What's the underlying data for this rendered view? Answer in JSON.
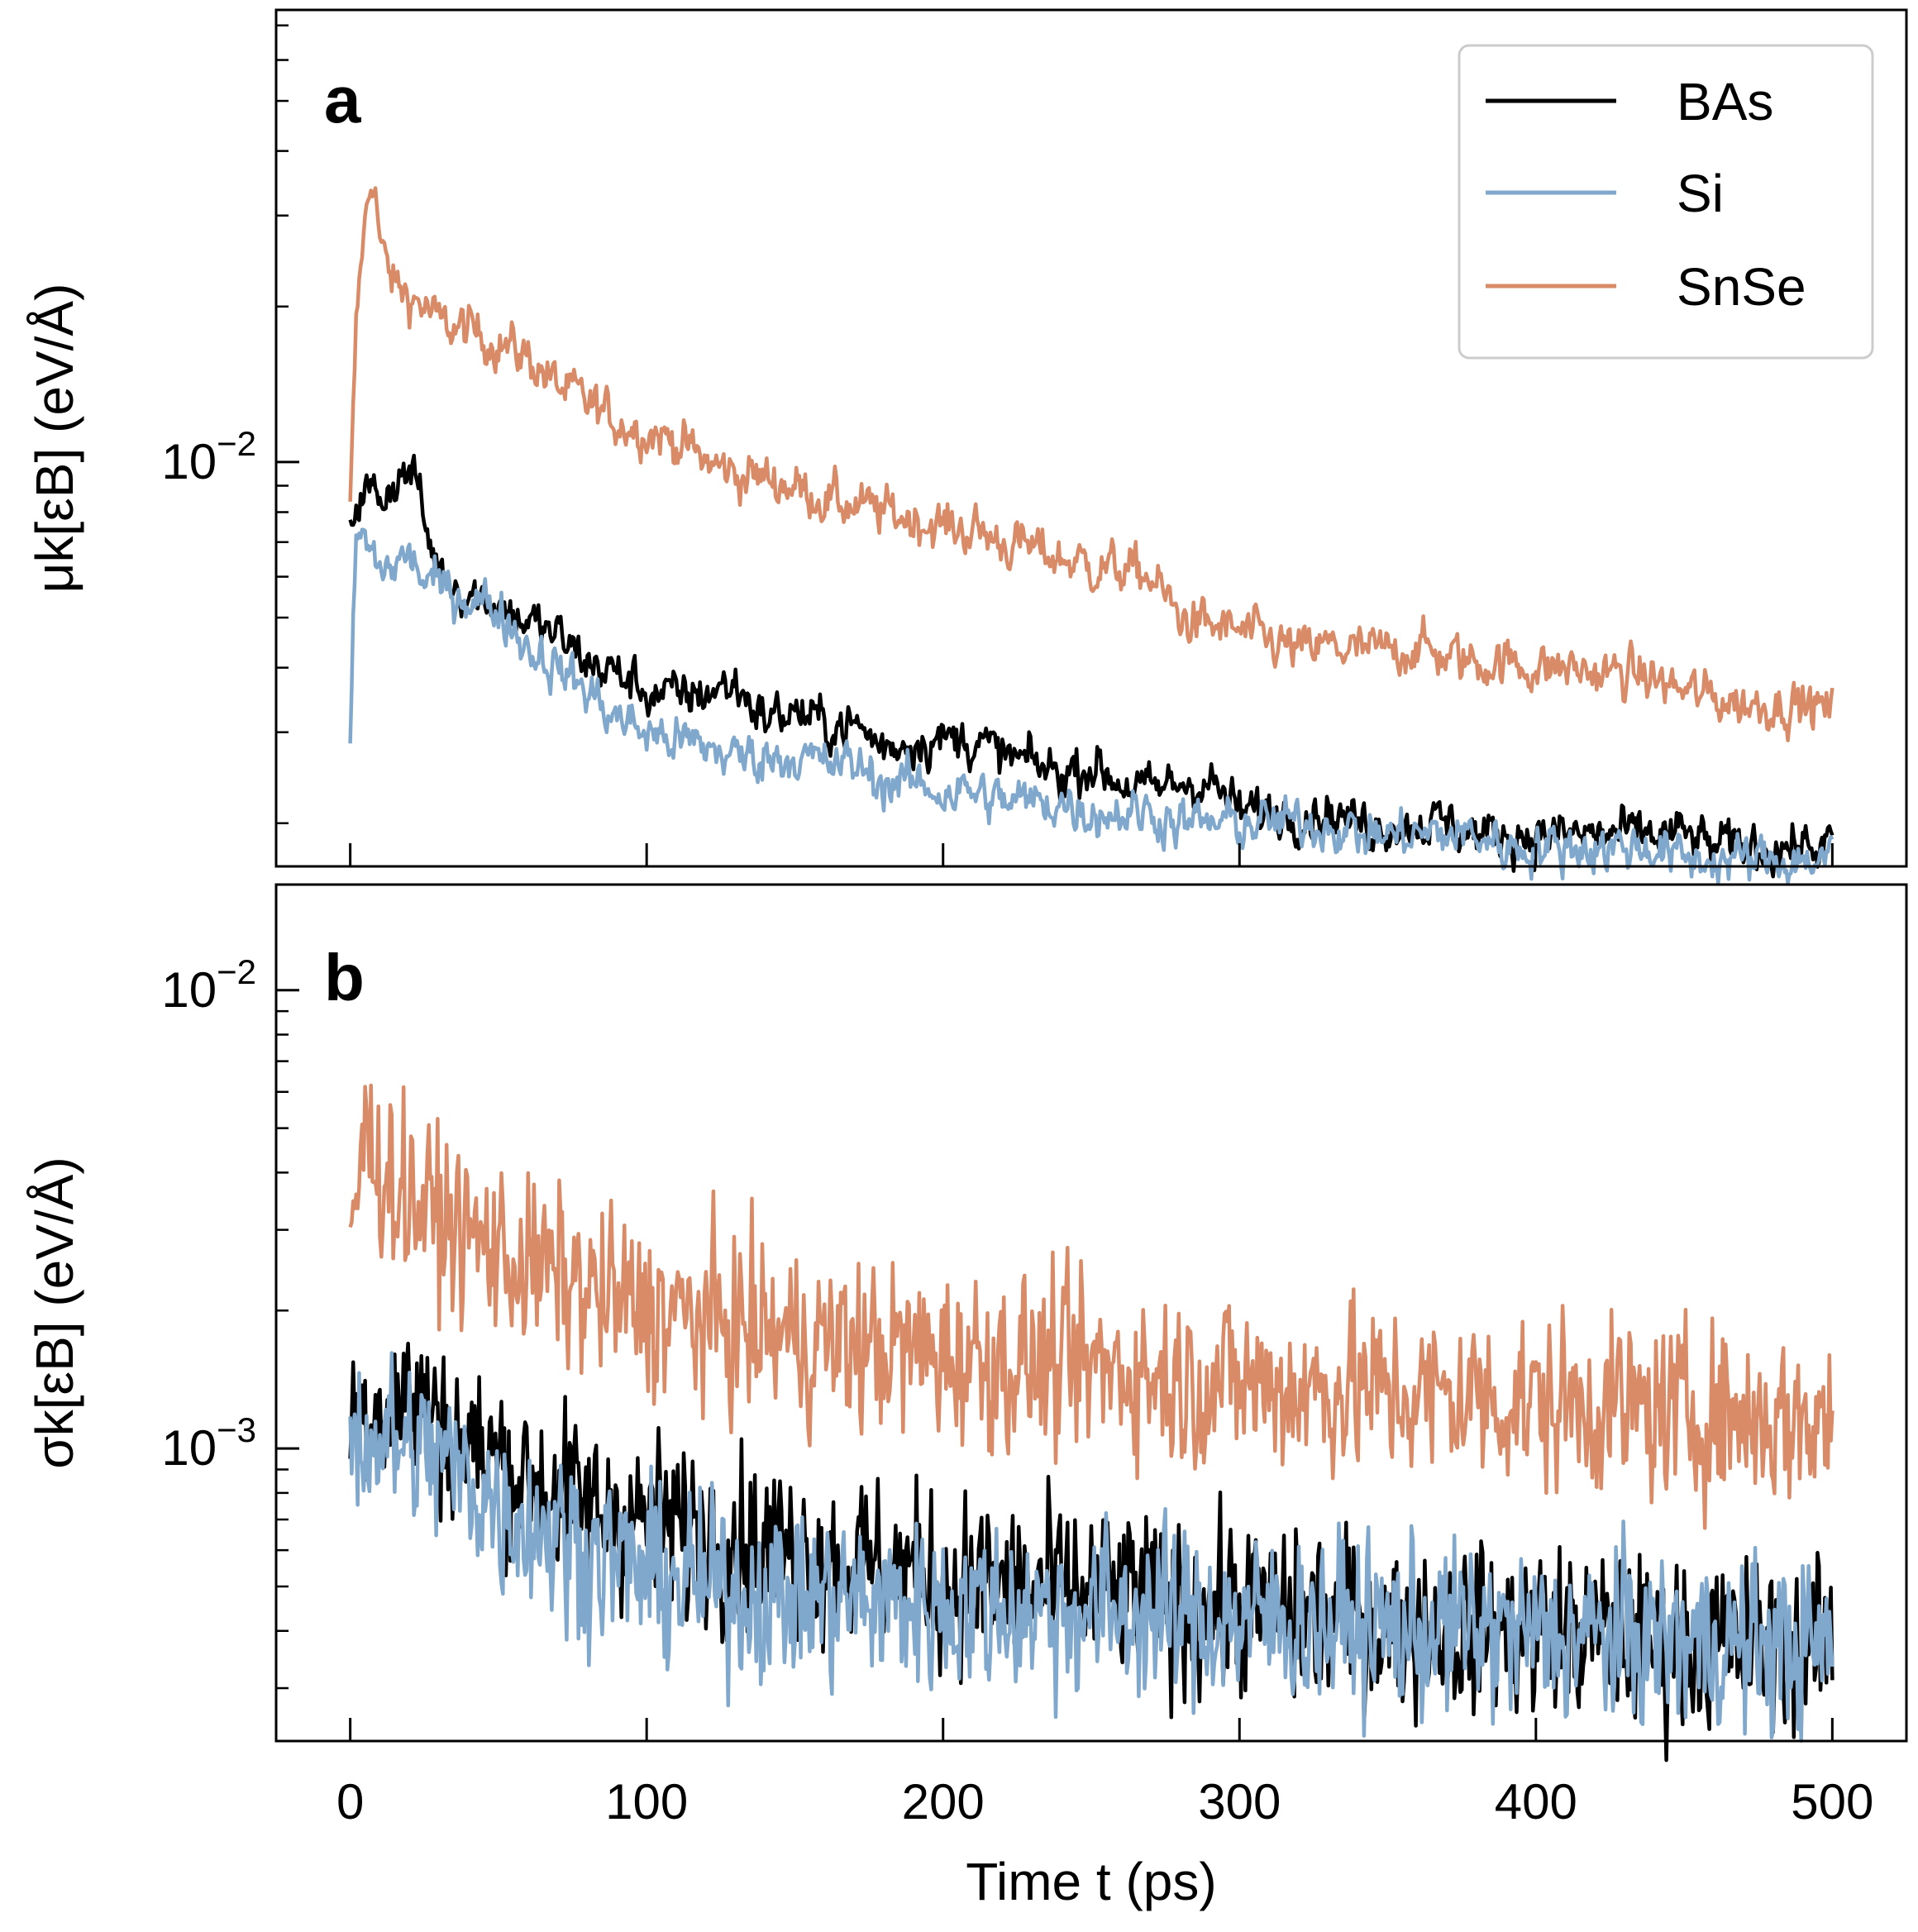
{
  "chart_data": {
    "type": "line",
    "x_axis": {
      "label": "Time t (ps)",
      "ticks": [
        0,
        100,
        200,
        300,
        400,
        500
      ],
      "xlim": [
        -25,
        525
      ]
    },
    "legend": {
      "placement": "top-right",
      "entries": [
        {
          "name": "BAs",
          "color": "#000000"
        },
        {
          "name": "Si",
          "color": "#7fa8cc"
        },
        {
          "name": "SnSe",
          "color": "#d98a66"
        }
      ]
    },
    "panels": [
      {
        "letter": "a",
        "ylabel": "μk[εB] (eV/Å)",
        "yscale": "log",
        "ylim": [
          0.00165,
          0.075
        ],
        "major_ticks": [
          {
            "value": 0.01,
            "label": "10−2"
          }
        ],
        "minor_ticks": [
          0.002,
          0.003,
          0.004,
          0.005,
          0.006,
          0.007,
          0.008,
          0.009,
          0.02,
          0.03,
          0.04,
          0.05,
          0.06,
          0.07
        ],
        "series": [
          {
            "name": "BAs",
            "color": "#000000",
            "x": [
              0,
              2,
              5,
              10,
              15,
              20,
              23,
              25,
              30,
              40,
              50,
              60,
              70,
              80,
              90,
              100,
              110,
              120,
              130,
              140,
              150,
              160,
              170,
              180,
              190,
              200,
              210,
              220,
              230,
              240,
              250,
              260,
              270,
              280,
              290,
              300,
              310,
              320,
              330,
              340,
              350,
              360,
              370,
              380,
              390,
              400,
              410,
              420,
              430,
              440,
              450,
              460,
              470,
              480,
              490,
              500
            ],
            "y": [
              0.0075,
              0.0085,
              0.0088,
              0.0086,
              0.0092,
              0.0096,
              0.009,
              0.0075,
              0.0062,
              0.0056,
              0.0053,
              0.0049,
              0.0046,
              0.0041,
              0.0039,
              0.0036,
              0.0035,
              0.0036,
              0.0037,
              0.0032,
              0.0033,
              0.0031,
              0.0031,
              0.0028,
              0.0029,
              0.0029,
              0.0029,
              0.0027,
              0.0026,
              0.0025,
              0.0026,
              0.0024,
              0.0023,
              0.0024,
              0.0024,
              0.0021,
              0.0021,
              0.0021,
              0.0021,
              0.002,
              0.002,
              0.002,
              0.002,
              0.0019,
              0.0019,
              0.0019,
              0.0019,
              0.0019,
              0.0019,
              0.0019,
              0.0019,
              0.0018,
              0.0018,
              0.0018,
              0.0018,
              0.0018
            ]
          },
          {
            "name": "Si",
            "color": "#7fa8cc",
            "x": [
              0,
              2,
              5,
              10,
              15,
              20,
              25,
              30,
              40,
              50,
              60,
              70,
              80,
              90,
              100,
              110,
              120,
              130,
              140,
              150,
              160,
              170,
              180,
              190,
              200,
              210,
              220,
              230,
              240,
              250,
              260,
              270,
              280,
              290,
              300,
              310,
              320,
              330,
              340,
              350,
              360,
              370,
              380,
              390,
              400,
              410,
              420,
              430,
              440,
              450,
              460,
              470,
              480,
              490,
              500
            ],
            "y": [
              0.0029,
              0.0072,
              0.007,
              0.0062,
              0.0063,
              0.0066,
              0.0059,
              0.0057,
              0.0055,
              0.0052,
              0.0044,
              0.004,
              0.0036,
              0.0032,
              0.003,
              0.0029,
              0.0028,
              0.0027,
              0.0027,
              0.0027,
              0.0026,
              0.0026,
              0.0024,
              0.0024,
              0.0023,
              0.0023,
              0.0022,
              0.0022,
              0.0022,
              0.0021,
              0.0021,
              0.0021,
              0.002,
              0.002,
              0.002,
              0.002,
              0.002,
              0.002,
              0.0019,
              0.0019,
              0.0019,
              0.0019,
              0.0019,
              0.0018,
              0.0018,
              0.0018,
              0.0018,
              0.0018,
              0.0018,
              0.0017,
              0.0017,
              0.0017,
              0.0017,
              0.0017,
              0.0017
            ]
          },
          {
            "name": "SnSe",
            "color": "#d98a66",
            "x": [
              0,
              2,
              4,
              6,
              8,
              10,
              12,
              15,
              20,
              25,
              30,
              40,
              50,
              60,
              70,
              80,
              90,
              100,
              110,
              120,
              130,
              140,
              150,
              160,
              170,
              180,
              190,
              200,
              210,
              220,
              230,
              240,
              250,
              260,
              270,
              280,
              290,
              300,
              310,
              320,
              330,
              340,
              350,
              360,
              370,
              380,
              390,
              400,
              410,
              420,
              430,
              440,
              450,
              460,
              470,
              480,
              490,
              500
            ],
            "y": [
              0.008,
              0.018,
              0.026,
              0.032,
              0.037,
              0.027,
              0.024,
              0.022,
              0.021,
              0.02,
              0.0185,
              0.018,
              0.017,
              0.016,
              0.014,
              0.013,
              0.012,
              0.0115,
              0.011,
              0.01,
              0.0095,
              0.0093,
              0.009,
              0.0085,
              0.0082,
              0.008,
              0.0078,
              0.0075,
              0.0074,
              0.007,
              0.0068,
              0.0065,
              0.0063,
              0.0062,
              0.006,
              0.005,
              0.0048,
              0.0047,
              0.0045,
              0.0043,
              0.0044,
              0.0043,
              0.0043,
              0.0044,
              0.0042,
              0.0041,
              0.0041,
              0.004,
              0.004,
              0.0039,
              0.0039,
              0.0038,
              0.0036,
              0.0035,
              0.0034,
              0.0034,
              0.0034,
              0.0033
            ]
          }
        ]
      },
      {
        "letter": "b",
        "ylabel": "σk[εB] (eV/Å)",
        "yscale": "log",
        "ylim": [
          0.00023,
          0.017
        ],
        "major_ticks": [
          {
            "value": 0.01,
            "label": "10−2"
          },
          {
            "value": 0.001,
            "label": "10−3"
          }
        ],
        "minor_ticks": [
          0.0003,
          0.0004,
          0.0005,
          0.0006,
          0.0007,
          0.0008,
          0.0009,
          0.002,
          0.003,
          0.004,
          0.005,
          0.006,
          0.007,
          0.008,
          0.009
        ],
        "series": [
          {
            "name": "BAs",
            "color": "#000000",
            "x": [
              0,
              10,
              20,
              30,
              40,
              50,
              60,
              70,
              80,
              90,
              100,
              120,
              140,
              160,
              180,
              200,
              220,
              240,
              260,
              280,
              300,
              320,
              340,
              360,
              380,
              400,
              420,
              440,
              460,
              480,
              500
            ],
            "y": [
              0.0012,
              0.00125,
              0.0013,
              0.00115,
              0.001,
              0.00095,
              0.00085,
              0.0008,
              0.00075,
              0.00072,
              0.0007,
              0.00066,
              0.00062,
              0.00058,
              0.00055,
              0.00052,
              0.0005,
              0.00049,
              0.00048,
              0.00046,
              0.00045,
              0.00043,
              0.00042,
              0.00041,
              0.0004,
              0.0004,
              0.00039,
              0.00038,
              0.00038,
              0.00037,
              0.00037
            ]
          },
          {
            "name": "Si",
            "color": "#7fa8cc",
            "x": [
              0,
              10,
              20,
              30,
              40,
              50,
              60,
              70,
              80,
              90,
              100,
              120,
              140,
              160,
              180,
              200,
              220,
              240,
              260,
              280,
              300,
              320,
              340,
              360,
              380,
              400,
              420,
              440,
              460,
              480,
              500
            ],
            "y": [
              0.0011,
              0.00105,
              0.001,
              0.00095,
              0.00085,
              0.00075,
              0.0007,
              0.00065,
              0.0006,
              0.00057,
              0.00053,
              0.0005,
              0.00048,
              0.00047,
              0.00046,
              0.00045,
              0.00045,
              0.00044,
              0.00044,
              0.00043,
              0.00042,
              0.00042,
              0.00041,
              0.0004,
              0.0004,
              0.00039,
              0.00039,
              0.00038,
              0.00038,
              0.00037,
              0.00037
            ]
          },
          {
            "name": "SnSe",
            "color": "#d98a66",
            "x": [
              0,
              5,
              10,
              15,
              20,
              30,
              40,
              50,
              60,
              70,
              80,
              90,
              100,
              120,
              140,
              160,
              180,
              200,
              220,
              240,
              260,
              280,
              300,
              320,
              340,
              360,
              380,
              400,
              420,
              440,
              460,
              480,
              500
            ],
            "y": [
              0.003,
              0.0048,
              0.0042,
              0.0038,
              0.0035,
              0.0032,
              0.0029,
              0.0027,
              0.0025,
              0.0024,
              0.0022,
              0.0021,
              0.002,
              0.0019,
              0.0018,
              0.0017,
              0.00165,
              0.0016,
              0.00155,
              0.0015,
              0.0015,
              0.0014,
              0.0014,
              0.00135,
              0.00135,
              0.0013,
              0.0013,
              0.00125,
              0.00125,
              0.0012,
              0.0012,
              0.00115,
              0.00115
            ]
          }
        ]
      }
    ]
  }
}
